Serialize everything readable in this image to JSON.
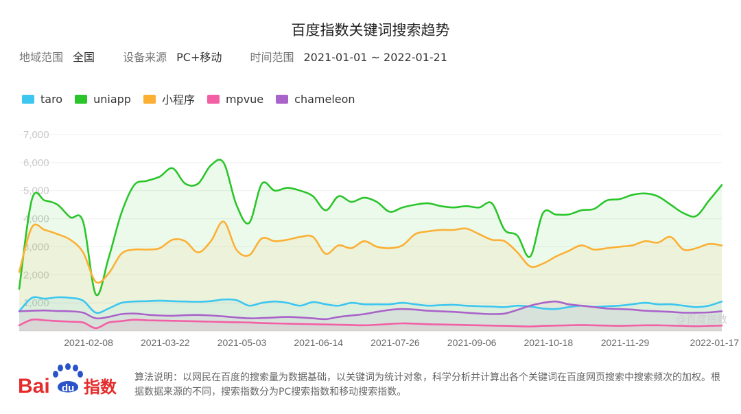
{
  "title": "百度指数关键词搜索趋势",
  "meta": {
    "region_label": "地域范围",
    "region_value": "全国",
    "device_label": "设备来源",
    "device_value": "PC+移动",
    "time_label": "时间范围",
    "time_value": "2021-01-01 ~ 2022-01-21"
  },
  "watermark": "@百度指数",
  "logo": {
    "text_bai": "Bai",
    "text_du": "du",
    "text_zhishu": "指数",
    "red": "#e52b2b",
    "blue": "#2b53c9"
  },
  "footnote": "算法说明：以网民在百度的搜索量为数据基础，以关键词为统计对象，科学分析并计算出各个关键词在百度网页搜索中搜索频次的加权。根据数据来源的不同，搜索指数分为PC搜索指数和移动搜索指数。",
  "chart_data": {
    "type": "area",
    "xlabel": "",
    "ylabel": "",
    "ylim": [
      0,
      7000
    ],
    "yticks": [
      "1,000",
      "2,000",
      "3,000",
      "4,000",
      "5,000",
      "6,000",
      "7,000"
    ],
    "x_ticks": [
      "2021-02-08",
      "2021-03-22",
      "2021-05-03",
      "2021-06-14",
      "2021-07-26",
      "2021-09-06",
      "2021-10-18",
      "2021-11-29",
      "2022-01-17"
    ],
    "x_range": [
      "2021-01-01",
      "2022-01-21"
    ],
    "grid": true,
    "legend_position": "top-left",
    "x": [
      "2021-01-01",
      "2021-01-08",
      "2021-01-15",
      "2021-01-22",
      "2021-01-29",
      "2021-02-05",
      "2021-02-12",
      "2021-02-19",
      "2021-02-26",
      "2021-03-05",
      "2021-03-12",
      "2021-03-19",
      "2021-03-26",
      "2021-04-02",
      "2021-04-09",
      "2021-04-16",
      "2021-04-23",
      "2021-04-30",
      "2021-05-07",
      "2021-05-14",
      "2021-05-21",
      "2021-05-28",
      "2021-06-04",
      "2021-06-11",
      "2021-06-18",
      "2021-06-25",
      "2021-07-02",
      "2021-07-09",
      "2021-07-16",
      "2021-07-23",
      "2021-07-30",
      "2021-08-06",
      "2021-08-13",
      "2021-08-20",
      "2021-08-27",
      "2021-09-03",
      "2021-09-10",
      "2021-09-17",
      "2021-09-24",
      "2021-10-01",
      "2021-10-08",
      "2021-10-15",
      "2021-10-22",
      "2021-10-29",
      "2021-11-05",
      "2021-11-12",
      "2021-11-19",
      "2021-11-26",
      "2021-12-03",
      "2021-12-10",
      "2021-12-17",
      "2021-12-24",
      "2021-12-31",
      "2022-01-07",
      "2022-01-14",
      "2022-01-21"
    ],
    "series": [
      {
        "name": "taro",
        "color": "#3cc6f0",
        "values": [
          700,
          1180,
          1150,
          1200,
          1180,
          1080,
          650,
          800,
          1000,
          1050,
          1060,
          1080,
          1060,
          1050,
          1040,
          1060,
          1120,
          1100,
          900,
          1000,
          1050,
          1000,
          900,
          1030,
          950,
          900,
          1000,
          950,
          950,
          950,
          1000,
          950,
          900,
          920,
          930,
          900,
          880,
          870,
          850,
          900,
          870,
          800,
          780,
          850,
          900,
          860,
          880,
          900,
          950,
          1000,
          950,
          950,
          900,
          850,
          900,
          1050
        ]
      },
      {
        "name": "uniapp",
        "color": "#2ac52a",
        "values": [
          1500,
          4700,
          4650,
          4500,
          4050,
          3900,
          1300,
          2600,
          4200,
          5200,
          5350,
          5500,
          5800,
          5250,
          5250,
          5900,
          6000,
          4500,
          3850,
          5250,
          5000,
          5100,
          5000,
          4800,
          4300,
          4800,
          4600,
          4750,
          4600,
          4250,
          4400,
          4500,
          4550,
          4450,
          4400,
          4450,
          4400,
          4550,
          3600,
          3400,
          2650,
          4200,
          4150,
          4150,
          4300,
          4350,
          4650,
          4700,
          4850,
          4900,
          4800,
          4500,
          4200,
          4100,
          4650,
          5200
        ]
      },
      {
        "name": "小程序",
        "color": "#fbb034",
        "values": [
          2100,
          3700,
          3600,
          3450,
          3250,
          2800,
          1750,
          2050,
          2750,
          2900,
          2900,
          2950,
          3250,
          3200,
          2800,
          3200,
          3900,
          2900,
          2700,
          3300,
          3200,
          3250,
          3350,
          3350,
          2750,
          3050,
          2950,
          3200,
          3000,
          2950,
          3050,
          3450,
          3550,
          3600,
          3600,
          3650,
          3450,
          3250,
          3200,
          2800,
          2300,
          2400,
          2650,
          2850,
          3050,
          2900,
          2950,
          3000,
          3050,
          3200,
          3150,
          3350,
          2900,
          2950,
          3100,
          3050
        ]
      },
      {
        "name": "mpvue",
        "color": "#f25fa4",
        "values": [
          200,
          400,
          380,
          350,
          330,
          300,
          100,
          300,
          350,
          400,
          380,
          370,
          360,
          350,
          340,
          330,
          320,
          310,
          300,
          280,
          270,
          260,
          250,
          240,
          230,
          220,
          210,
          200,
          220,
          250,
          270,
          260,
          240,
          230,
          220,
          210,
          200,
          190,
          180,
          170,
          160,
          180,
          190,
          200,
          210,
          200,
          190,
          180,
          190,
          200,
          200,
          190,
          180,
          170,
          180,
          190
        ]
      },
      {
        "name": "chameleon",
        "color": "#aa63c9",
        "values": [
          700,
          720,
          730,
          710,
          700,
          650,
          450,
          500,
          600,
          620,
          580,
          550,
          540,
          560,
          570,
          550,
          520,
          480,
          450,
          460,
          480,
          500,
          480,
          450,
          420,
          500,
          550,
          600,
          680,
          750,
          780,
          760,
          720,
          700,
          680,
          650,
          620,
          600,
          620,
          750,
          900,
          1000,
          1050,
          950,
          900,
          850,
          800,
          780,
          760,
          720,
          700,
          680,
          650,
          650,
          660,
          700
        ]
      }
    ]
  }
}
